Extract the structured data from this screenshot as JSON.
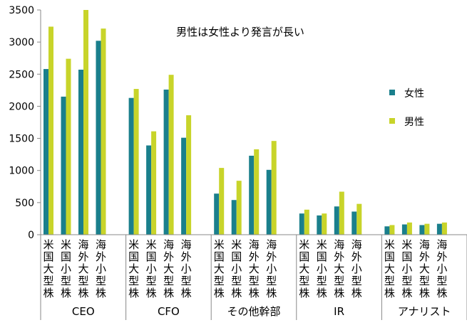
{
  "chart_data": {
    "type": "bar",
    "title": "男性は女性より発言が長い",
    "xlabel": "",
    "ylabel": "",
    "ylim": [
      0,
      3500
    ],
    "yticks": [
      0,
      500,
      1000,
      1500,
      2000,
      2500,
      3000,
      3500
    ],
    "grid": false,
    "legend_position": "right",
    "groups": [
      {
        "name": "CEO",
        "categories": [
          "米国大型株",
          "米国小型株",
          "海外大型株",
          "海外小型株"
        ]
      },
      {
        "name": "CFO",
        "categories": [
          "米国大型株",
          "米国小型株",
          "海外大型株",
          "海外小型株"
        ]
      },
      {
        "name": "その他幹部",
        "categories": [
          "米国大型株",
          "米国小型株",
          "海外大型株",
          "海外小型株"
        ]
      },
      {
        "name": "IR",
        "categories": [
          "米国大型株",
          "米国小型株",
          "海外大型株",
          "海外小型株"
        ]
      },
      {
        "name": "アナリスト",
        "categories": [
          "米国大型株",
          "米国小型株",
          "海外大型株",
          "海外小型株"
        ]
      }
    ],
    "series": [
      {
        "name": "女性",
        "color": "#1a7f8c",
        "values": [
          2580,
          2150,
          2570,
          3020,
          2130,
          1390,
          2260,
          1510,
          640,
          540,
          1230,
          1010,
          330,
          300,
          440,
          360,
          130,
          160,
          150,
          170
        ]
      },
      {
        "name": "男性",
        "color": "#c8d42a",
        "values": [
          3240,
          2740,
          3500,
          3210,
          2270,
          1610,
          2490,
          1860,
          1040,
          840,
          1330,
          1460,
          390,
          330,
          670,
          480,
          150,
          190,
          170,
          190
        ]
      }
    ]
  }
}
